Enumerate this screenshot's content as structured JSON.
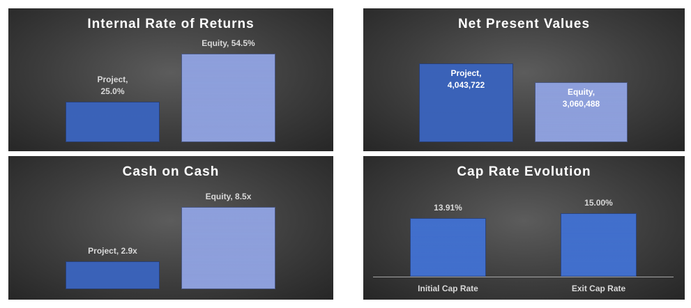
{
  "chart_data": [
    {
      "type": "bar",
      "title": "Internal Rate of Returns",
      "values": [
        25.0,
        54.5
      ],
      "value_labels": [
        "Project, 25.0%",
        "Equity, 54.5%"
      ],
      "colors": [
        "#3a62b8",
        "#8d9fdb"
      ],
      "ylim": [
        0,
        60
      ],
      "label_position": "outside_end"
    },
    {
      "type": "bar",
      "title": "Net Present Values",
      "values": [
        4043722,
        3060488
      ],
      "value_labels": [
        "Project, 4,043,722",
        "Equity, 3,060,488"
      ],
      "colors": [
        "#3a62b8",
        "#8d9fdb"
      ],
      "ylim": [
        0,
        4500000
      ],
      "label_position": "inside_end"
    },
    {
      "type": "bar",
      "title": "Cash on Cash",
      "values": [
        2.9,
        8.5
      ],
      "value_labels": [
        "Project, 2.9x",
        "Equity, 8.5x"
      ],
      "colors": [
        "#3a62b8",
        "#8d9fdb"
      ],
      "ylim": [
        0,
        10
      ],
      "label_position": "outside_end"
    },
    {
      "type": "bar",
      "title": "Cap Rate Evolution",
      "categories": [
        "Initial Cap Rate",
        "Exit Cap Rate"
      ],
      "values": [
        13.91,
        15.0
      ],
      "value_labels": [
        "13.91%",
        "15.00%"
      ],
      "colors": [
        "#416fcc",
        "#416fcc"
      ],
      "ylim": [
        0,
        16
      ],
      "label_position": "outside_end"
    }
  ]
}
